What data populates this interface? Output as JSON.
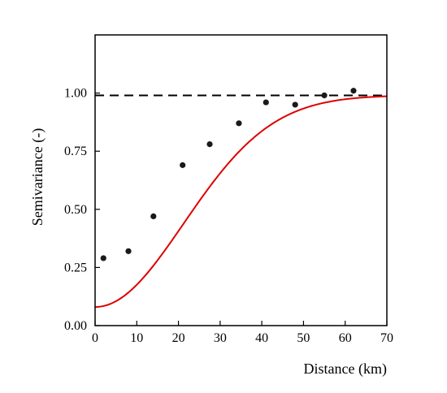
{
  "chart_data": {
    "type": "scatter",
    "title": "",
    "xlabel": "Distance (km)",
    "ylabel": "Semivariance (-)",
    "xlim": [
      0,
      70
    ],
    "ylim": [
      0,
      1.25
    ],
    "x_ticks": [
      0,
      10,
      20,
      30,
      40,
      50,
      60,
      70
    ],
    "x_tick_labels": [
      "0",
      "10",
      "20",
      "30",
      "40",
      "50",
      "60",
      "70"
    ],
    "y_ticks": [
      0,
      0.25,
      0.5,
      0.75,
      1.0
    ],
    "y_tick_labels": [
      "0.00",
      "0.25",
      "0.50",
      "0.75",
      "1.00"
    ],
    "grid": false,
    "legend": "none",
    "points": {
      "x": [
        2,
        8,
        14,
        21,
        27.5,
        34.5,
        41,
        48,
        55,
        62
      ],
      "y": [
        0.29,
        0.32,
        0.47,
        0.69,
        0.78,
        0.87,
        0.96,
        0.95,
        0.99,
        1.01
      ],
      "color": "#1a1a1a"
    },
    "fit_curve": {
      "model": "gaussian",
      "nugget": 0.08,
      "sill": 0.99,
      "range_km": 30,
      "color": "#dd0000"
    },
    "sill_line": {
      "y": 0.99,
      "style": "dashed",
      "color": "#000000"
    }
  }
}
